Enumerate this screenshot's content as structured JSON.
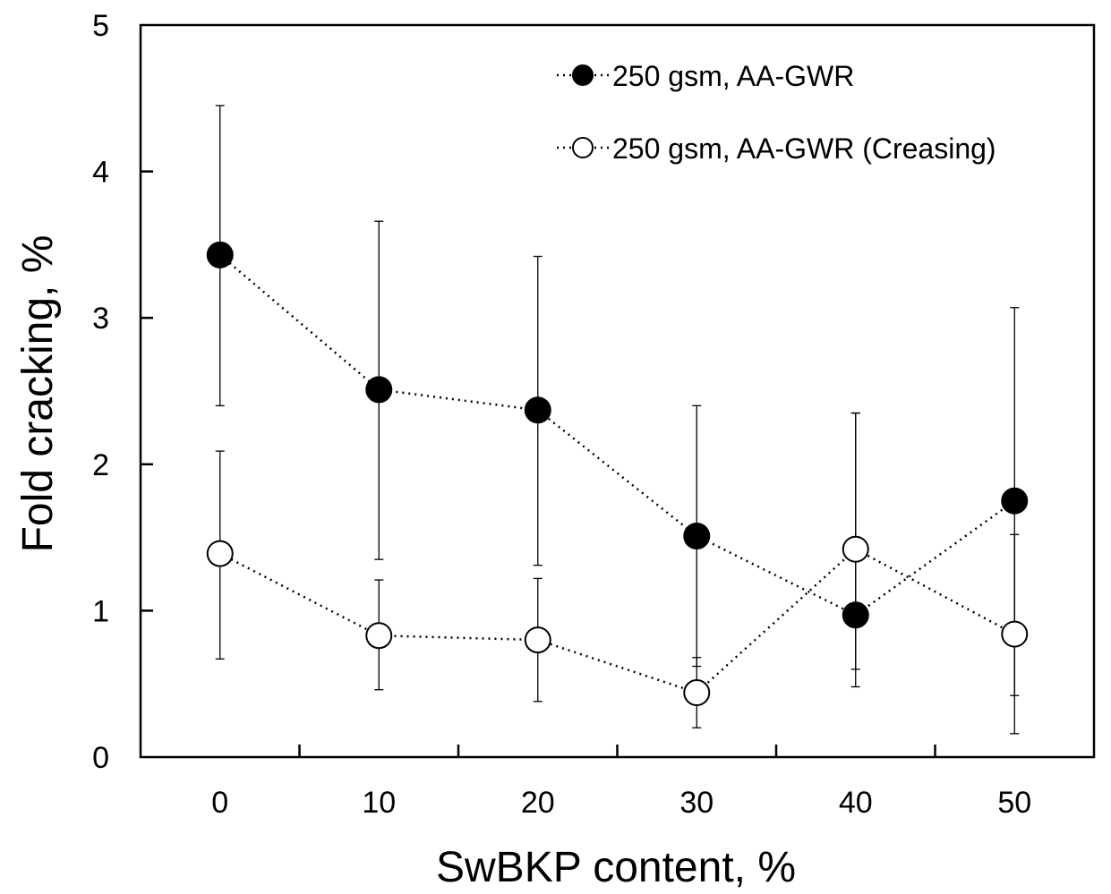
{
  "chart_data": {
    "type": "scatter",
    "title": "",
    "xlabel": "SwBKP content, %",
    "ylabel": "Fold cracking, %",
    "categories": [
      "0",
      "10",
      "20",
      "30",
      "40",
      "50"
    ],
    "x": [
      0,
      10,
      20,
      30,
      40,
      50
    ],
    "xlim": [
      -5,
      55
    ],
    "ylim": [
      0,
      5
    ],
    "yticks": [
      "0",
      "1",
      "2",
      "3",
      "4",
      "5"
    ],
    "grid": false,
    "legend_position": "top-right",
    "series": [
      {
        "name": "250 gsm, AA-GWR",
        "marker": "filled-circle",
        "line": "dotted",
        "color": "#000000",
        "values": [
          3.43,
          2.51,
          2.37,
          1.51,
          0.97,
          1.75
        ],
        "err_low": [
          2.4,
          1.35,
          1.31,
          0.62,
          0.6,
          0.42
        ],
        "err_high": [
          4.45,
          3.66,
          3.42,
          2.4,
          2.35,
          3.07
        ]
      },
      {
        "name": "250 gsm, AA-GWR (Creasing)",
        "marker": "open-circle",
        "line": "dotted",
        "color": "#000000",
        "values": [
          1.39,
          0.83,
          0.8,
          0.44,
          1.42,
          0.84
        ],
        "err_low": [
          0.67,
          0.46,
          0.38,
          0.2,
          0.48,
          0.16
        ],
        "err_high": [
          2.09,
          1.21,
          1.22,
          0.68,
          2.35,
          1.52
        ]
      }
    ]
  }
}
